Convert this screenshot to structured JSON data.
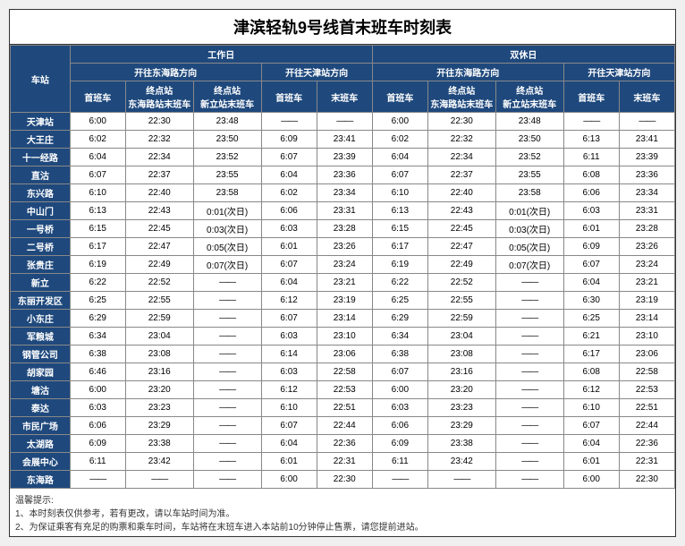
{
  "title": "津滨轻轨9号线首末班车时刻表",
  "colors": {
    "header_bg": "#1f497d",
    "header_fg": "#ffffff",
    "border": "#888888",
    "cell_bg": "#ffffff",
    "cell_fg": "#000000"
  },
  "header": {
    "station": "车站",
    "weekday": "工作日",
    "weekend": "双休日",
    "to_donghai": "开往东海路方向",
    "to_tianjin": "开往天津站方向",
    "first": "首班车",
    "last": "末班车",
    "term_donghai": "终点站\n东海路站末班车",
    "term_xinli": "终点站\n新立站末班车"
  },
  "columns_weekday_donghai": [
    "首班车",
    "终点站东海路站末班车",
    "终点站新立站末班车"
  ],
  "columns_weekday_tianjin": [
    "首班车",
    "末班车"
  ],
  "columns_weekend_donghai": [
    "首班车",
    "终点站东海路站末班车",
    "终点站新立站末班车"
  ],
  "columns_weekend_tianjin": [
    "首班车",
    "末班车"
  ],
  "dash": "——",
  "stations": [
    {
      "name": "天津站",
      "wd": [
        "6:00",
        "22:30",
        "23:48",
        "——",
        "——"
      ],
      "we": [
        "6:00",
        "22:30",
        "23:48",
        "——",
        "——"
      ]
    },
    {
      "name": "大王庄",
      "wd": [
        "6:02",
        "22:32",
        "23:50",
        "6:09",
        "23:41"
      ],
      "we": [
        "6:02",
        "22:32",
        "23:50",
        "6:13",
        "23:41"
      ]
    },
    {
      "name": "十一经路",
      "wd": [
        "6:04",
        "22:34",
        "23:52",
        "6:07",
        "23:39"
      ],
      "we": [
        "6:04",
        "22:34",
        "23:52",
        "6:11",
        "23:39"
      ]
    },
    {
      "name": "直沽",
      "wd": [
        "6:07",
        "22:37",
        "23:55",
        "6:04",
        "23:36"
      ],
      "we": [
        "6:07",
        "22:37",
        "23:55",
        "6:08",
        "23:36"
      ]
    },
    {
      "name": "东兴路",
      "wd": [
        "6:10",
        "22:40",
        "23:58",
        "6:02",
        "23:34"
      ],
      "we": [
        "6:10",
        "22:40",
        "23:58",
        "6:06",
        "23:34"
      ]
    },
    {
      "name": "中山门",
      "wd": [
        "6:13",
        "22:43",
        "0:01(次日)",
        "6:06",
        "23:31"
      ],
      "we": [
        "6:13",
        "22:43",
        "0:01(次日)",
        "6:03",
        "23:31"
      ]
    },
    {
      "name": "一号桥",
      "wd": [
        "6:15",
        "22:45",
        "0:03(次日)",
        "6:03",
        "23:28"
      ],
      "we": [
        "6:15",
        "22:45",
        "0:03(次日)",
        "6:01",
        "23:28"
      ]
    },
    {
      "name": "二号桥",
      "wd": [
        "6:17",
        "22:47",
        "0:05(次日)",
        "6:01",
        "23:26"
      ],
      "we": [
        "6:17",
        "22:47",
        "0:05(次日)",
        "6:09",
        "23:26"
      ]
    },
    {
      "name": "张贵庄",
      "wd": [
        "6:19",
        "22:49",
        "0:07(次日)",
        "6:07",
        "23:24"
      ],
      "we": [
        "6:19",
        "22:49",
        "0:07(次日)",
        "6:07",
        "23:24"
      ]
    },
    {
      "name": "新立",
      "wd": [
        "6:22",
        "22:52",
        "——",
        "6:04",
        "23:21"
      ],
      "we": [
        "6:22",
        "22:52",
        "——",
        "6:04",
        "23:21"
      ]
    },
    {
      "name": "东丽开发区",
      "wd": [
        "6:25",
        "22:55",
        "——",
        "6:12",
        "23:19"
      ],
      "we": [
        "6:25",
        "22:55",
        "——",
        "6:30",
        "23:19"
      ]
    },
    {
      "name": "小东庄",
      "wd": [
        "6:29",
        "22:59",
        "——",
        "6:07",
        "23:14"
      ],
      "we": [
        "6:29",
        "22:59",
        "——",
        "6:25",
        "23:14"
      ]
    },
    {
      "name": "军粮城",
      "wd": [
        "6:34",
        "23:04",
        "——",
        "6:03",
        "23:10"
      ],
      "we": [
        "6:34",
        "23:04",
        "——",
        "6:21",
        "23:10"
      ]
    },
    {
      "name": "钢管公司",
      "wd": [
        "6:38",
        "23:08",
        "——",
        "6:14",
        "23:06"
      ],
      "we": [
        "6:38",
        "23:08",
        "——",
        "6:17",
        "23:06"
      ]
    },
    {
      "name": "胡家园",
      "wd": [
        "6:46",
        "23:16",
        "——",
        "6:03",
        "22:58"
      ],
      "we": [
        "6:07",
        "23:16",
        "——",
        "6:08",
        "22:58"
      ]
    },
    {
      "name": "塘沽",
      "wd": [
        "6:00",
        "23:20",
        "——",
        "6:12",
        "22:53"
      ],
      "we": [
        "6:00",
        "23:20",
        "——",
        "6:12",
        "22:53"
      ]
    },
    {
      "name": "泰达",
      "wd": [
        "6:03",
        "23:23",
        "——",
        "6:10",
        "22:51"
      ],
      "we": [
        "6:03",
        "23:23",
        "——",
        "6:10",
        "22:51"
      ]
    },
    {
      "name": "市民广场",
      "wd": [
        "6:06",
        "23:29",
        "——",
        "6:07",
        "22:44"
      ],
      "we": [
        "6:06",
        "23:29",
        "——",
        "6:07",
        "22:44"
      ]
    },
    {
      "name": "太湖路",
      "wd": [
        "6:09",
        "23:38",
        "——",
        "6:04",
        "22:36"
      ],
      "we": [
        "6:09",
        "23:38",
        "——",
        "6:04",
        "22:36"
      ]
    },
    {
      "name": "会展中心",
      "wd": [
        "6:11",
        "23:42",
        "——",
        "6:01",
        "22:31"
      ],
      "we": [
        "6:11",
        "23:42",
        "——",
        "6:01",
        "22:31"
      ]
    },
    {
      "name": "东海路",
      "wd": [
        "——",
        "——",
        "——",
        "6:00",
        "22:30"
      ],
      "we": [
        "——",
        "——",
        "——",
        "6:00",
        "22:30"
      ]
    }
  ],
  "footer": {
    "label": "温馨提示:",
    "line1": "1、本时刻表仅供参考，若有更改，请以车站时间为准。",
    "line2": "2、为保证乘客有充足的购票和乘车时间，车站将在末班车进入本站前10分钟停止售票，请您提前进站。"
  }
}
